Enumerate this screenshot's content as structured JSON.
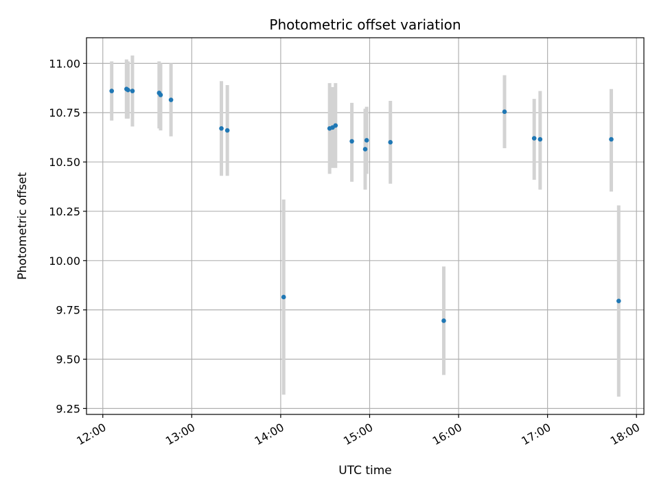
{
  "chart_data": {
    "type": "scatter",
    "title": "Photometric offset variation",
    "xlabel": "UTC time",
    "ylabel": "Photometric offset",
    "x_ticks": [
      "12:00",
      "13:00",
      "14:00",
      "15:00",
      "16:00",
      "17:00",
      "18:00"
    ],
    "y_ticks": [
      "9.25",
      "9.50",
      "9.75",
      "10.00",
      "10.25",
      "10.50",
      "10.75",
      "11.00"
    ],
    "xlim": [
      "11:49",
      "18:05"
    ],
    "ylim": [
      9.22,
      11.13
    ],
    "grid": true,
    "point_color": "#1f77b4",
    "errorbar_color": "#d3d3d3",
    "points": [
      {
        "x": "12:06",
        "y": 10.86,
        "err_low": 10.71,
        "err_high": 11.01
      },
      {
        "x": "12:16",
        "y": 10.87,
        "err_low": 10.72,
        "err_high": 11.02
      },
      {
        "x": "12:17",
        "y": 10.865,
        "err_low": 10.72,
        "err_high": 11.01
      },
      {
        "x": "12:20",
        "y": 10.86,
        "err_low": 10.68,
        "err_high": 11.04
      },
      {
        "x": "12:38",
        "y": 10.85,
        "err_low": 10.67,
        "err_high": 11.01
      },
      {
        "x": "12:39",
        "y": 10.84,
        "err_low": 10.66,
        "err_high": 11.0
      },
      {
        "x": "12:46",
        "y": 10.815,
        "err_low": 10.63,
        "err_high": 11.0
      },
      {
        "x": "13:20",
        "y": 10.67,
        "err_low": 10.43,
        "err_high": 10.91
      },
      {
        "x": "13:24",
        "y": 10.66,
        "err_low": 10.43,
        "err_high": 10.89
      },
      {
        "x": "14:02",
        "y": 9.815,
        "err_low": 9.32,
        "err_high": 10.31
      },
      {
        "x": "14:33",
        "y": 10.67,
        "err_low": 10.44,
        "err_high": 10.9
      },
      {
        "x": "14:35",
        "y": 10.675,
        "err_low": 10.47,
        "err_high": 10.88
      },
      {
        "x": "14:37",
        "y": 10.685,
        "err_low": 10.47,
        "err_high": 10.9
      },
      {
        "x": "14:48",
        "y": 10.605,
        "err_low": 10.4,
        "err_high": 10.8
      },
      {
        "x": "14:57",
        "y": 10.565,
        "err_low": 10.36,
        "err_high": 10.77
      },
      {
        "x": "14:58",
        "y": 10.61,
        "err_low": 10.44,
        "err_high": 10.78
      },
      {
        "x": "15:14",
        "y": 10.6,
        "err_low": 10.39,
        "err_high": 10.81
      },
      {
        "x": "15:50",
        "y": 9.695,
        "err_low": 9.42,
        "err_high": 9.97
      },
      {
        "x": "16:31",
        "y": 10.755,
        "err_low": 10.57,
        "err_high": 10.94
      },
      {
        "x": "16:51",
        "y": 10.62,
        "err_low": 10.41,
        "err_high": 10.82
      },
      {
        "x": "16:55",
        "y": 10.615,
        "err_low": 10.36,
        "err_high": 10.86
      },
      {
        "x": "17:43",
        "y": 10.615,
        "err_low": 10.35,
        "err_high": 10.87
      },
      {
        "x": "17:48",
        "y": 9.795,
        "err_low": 9.31,
        "err_high": 10.28
      }
    ]
  }
}
